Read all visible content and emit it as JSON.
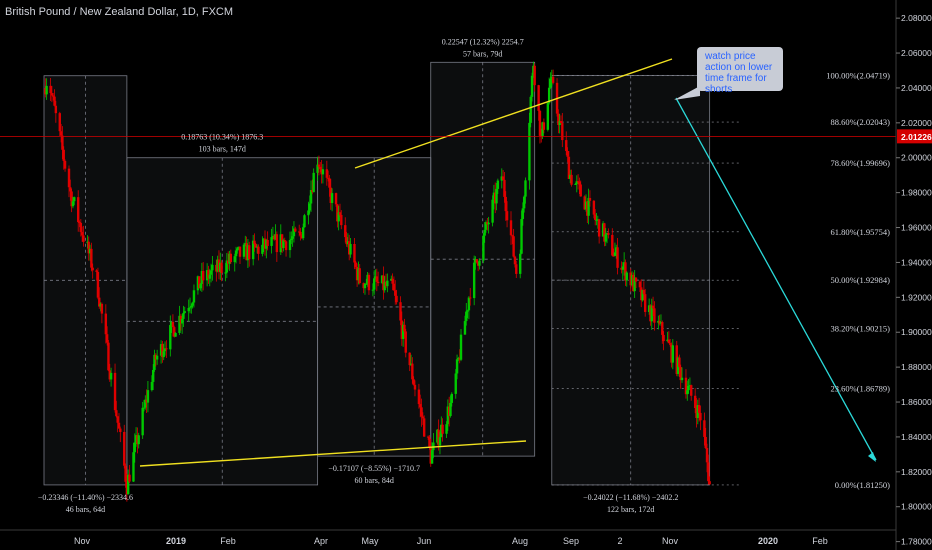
{
  "header": {
    "title": "British Pound / New Zealand Dollar, 1D, FXCM"
  },
  "note": {
    "text": "watch price action on lower time frame for shorts"
  },
  "colors": {
    "up": "#26a69a",
    "up_bright": "#00c800",
    "down": "#e00000",
    "trendline": "#f0e020",
    "ray": "#2bd9d9",
    "price_line": "#d40000",
    "box": "#787b86",
    "fib": "#9598a1"
  },
  "chart_data": {
    "type": "candlestick",
    "title": "British Pound / New Zealand Dollar, 1D, FXCM",
    "x_ticks": [
      "Nov",
      "2019",
      "Feb",
      "Apr",
      "May",
      "Jun",
      "Aug",
      "Sep",
      "2",
      "Nov",
      "2020",
      "Feb"
    ],
    "y_ticks": [
      "2.08000",
      "2.06000",
      "2.04000",
      "2.02000",
      "2.00000",
      "1.98000",
      "1.96000",
      "1.94000",
      "1.92000",
      "1.90000",
      "1.88000",
      "1.86000",
      "1.84000",
      "1.82000",
      "1.80000",
      "1.78000"
    ],
    "ylim": [
      1.7752,
      2.0904
    ],
    "current_price": {
      "value": 2.01226,
      "label": "2.01226"
    },
    "fib_levels": [
      {
        "ratio": 1.0,
        "value": 2.04719,
        "label": "100.00%(2.04719)"
      },
      {
        "ratio": 0.886,
        "value": 2.02043,
        "label": "88.60%(2.02043)"
      },
      {
        "ratio": 0.786,
        "value": 1.99696,
        "label": "78.60%(1.99696)"
      },
      {
        "ratio": 0.618,
        "value": 1.95754,
        "label": "61.80%(1.95754)"
      },
      {
        "ratio": 0.5,
        "value": 1.92984,
        "label": "50.00%(1.92984)"
      },
      {
        "ratio": 0.382,
        "value": 1.90215,
        "label": "38.20%(1.90215)"
      },
      {
        "ratio": 0.236,
        "value": 1.86789,
        "label": "23.60%(1.86789)"
      },
      {
        "ratio": 0.0,
        "value": 1.8125,
        "label": "0.00%(1.81250)"
      }
    ],
    "measurements": [
      {
        "line1": "−0.23346 (−11.40%) −2334.6",
        "line2": "46 bars, 64d"
      },
      {
        "line1": "0.18763 (10.34%) 1876.3",
        "line2": "103 bars, 147d"
      },
      {
        "line1": "−0.17107 (−8.55%) −1710.7",
        "line2": "60 bars, 84d"
      },
      {
        "line1": "0.22547 (12.32%) 2254.7",
        "line2": "57 bars, 79d"
      },
      {
        "line1": "−0.24022 (−11.68%) −2402.2",
        "line2": "122 bars, 172d"
      }
    ],
    "pivots": [
      {
        "date": "2018-10-10",
        "price": 2.047
      },
      {
        "date": "2018-12-12",
        "price": 1.8125
      },
      {
        "date": "2019-05-06",
        "price": 2.0
      },
      {
        "date": "2019-07-31",
        "price": 1.829
      },
      {
        "date": "2019-10-18",
        "price": 2.0547
      },
      {
        "date": "2019-10-31",
        "price": 2.0472
      },
      {
        "date": "2020-02-28",
        "price": 1.8125
      }
    ]
  }
}
